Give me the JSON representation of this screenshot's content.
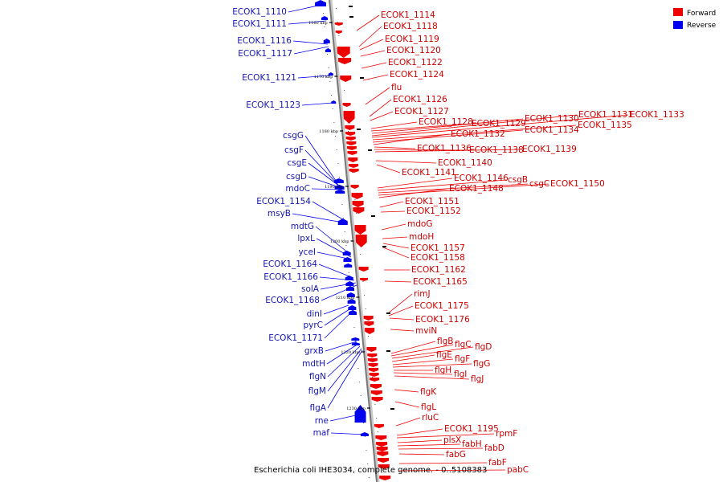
{
  "caption": "Escherichia coli IHE3034, complete genome. - 0..5108383",
  "legend": {
    "forward": {
      "label": "Forward",
      "color": "#ee0000"
    },
    "reverse": {
      "label": "Reverse",
      "color": "#0000ee"
    }
  },
  "scale_ticks": [
    "1160 kbp",
    "1170 kbp",
    "1180 kbp",
    "1190 kbp",
    "1200 kbp",
    "1210 kbp",
    "1220 kbp",
    "1230 kbp"
  ],
  "reverse_genes": [
    "ECOK1_1110",
    "ECOK1_1111",
    "ECOK1_1116",
    "ECOK1_1117",
    "ECOK1_1121",
    "ECOK1_1123",
    "csgG",
    "csgF",
    "csgE",
    "csgD",
    "mdoC",
    "ECOK1_1154",
    "msyB",
    "mdtG",
    "lpxL",
    "yceI",
    "ECOK1_1164",
    "ECOK1_1166",
    "solA",
    "ECOK1_1168",
    "dinI",
    "pyrC",
    "ECOK1_1171",
    "grxB",
    "mdtH",
    "flgN",
    "flgM",
    "flgA",
    "rne",
    "maf"
  ],
  "forward_genes": [
    "ECOK1_1114",
    "ECOK1_1118",
    "ECOK1_1119",
    "ECOK1_1120",
    "ECOK1_1122",
    "ECOK1_1124",
    "flu",
    "ECOK1_1126",
    "ECOK1_1127",
    "ECOK1_1128",
    "ECOK1_1129",
    "ECOK1_1130",
    "ECOK1_1131",
    "ECOK1_1133",
    "ECOK1_1135",
    "ECOK1_1134",
    "ECOK1_1132",
    "ECOK1_1136",
    "ECOK1_1138",
    "ECOK1_1139",
    "ECOK1_1140",
    "ECOK1_1141",
    "ECOK1_1146",
    "csgB",
    "csgC",
    "ECOK1_1150",
    "ECOK1_1148",
    "ECOK1_1151",
    "ECOK1_1152",
    "mdoG",
    "mdoH",
    "ECOK1_1157",
    "ECOK1_1158",
    "ECOK1_1162",
    "ECOK1_1165",
    "rimJ",
    "ECOK1_1175",
    "ECOK1_1176",
    "mviN",
    "flgB",
    "flgC",
    "flgD",
    "flgE",
    "flgF",
    "flgG",
    "flgH",
    "flgI",
    "flgJ",
    "flgK",
    "flgL",
    "rluC",
    "ECOK1_1195",
    "rpmF",
    "plsX",
    "fabH",
    "fabD",
    "fabG",
    "fabF",
    "pabC"
  ]
}
